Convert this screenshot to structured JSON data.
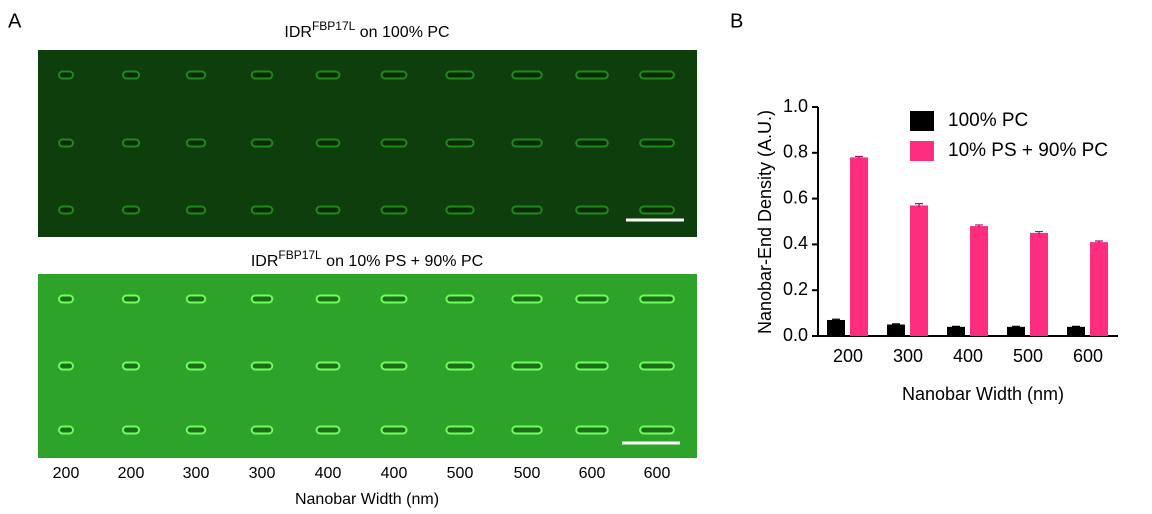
{
  "panels": {
    "a": {
      "label": "A",
      "images": [
        {
          "title": {
            "base": "IDR",
            "sup": "FBP17L",
            "rest": " on 100% PC"
          }
        },
        {
          "title": {
            "base": "IDR",
            "sup": "FBP17L",
            "rest": " on 10% PS + 90% PC"
          }
        }
      ],
      "x_labels": [
        "200",
        "200",
        "300",
        "300",
        "400",
        "400",
        "500",
        "500",
        "600",
        "600"
      ],
      "x_title": "Nanobar Width (nm)"
    },
    "b": {
      "label": "B"
    }
  },
  "chart_data": {
    "type": "bar",
    "ylabel": "Nanobar-End Density (A.U.)",
    "xlabel": "Nanobar Width (nm)",
    "categories": [
      "200",
      "300",
      "400",
      "500",
      "600"
    ],
    "series": [
      {
        "name": "100% PC",
        "color": "#000000",
        "values": [
          0.07,
          0.05,
          0.04,
          0.04,
          0.04
        ],
        "errors": [
          0.003,
          0.003,
          0.002,
          0.002,
          0.002
        ]
      },
      {
        "name": "10% PS + 90% PC",
        "color": "#ff2d7e",
        "values": [
          0.78,
          0.57,
          0.48,
          0.45,
          0.41
        ],
        "errors": [
          0.004,
          0.008,
          0.005,
          0.006,
          0.005
        ]
      }
    ],
    "ylim": [
      0,
      1.0
    ],
    "yticks": [
      {
        "value": 0,
        "label": "0.0"
      },
      0.2,
      0.4,
      0.6,
      0.8,
      {
        "value": 1,
        "label": "1.0"
      }
    ],
    "legend": "top-right"
  }
}
